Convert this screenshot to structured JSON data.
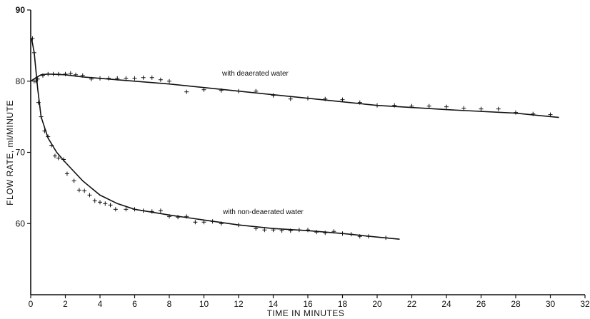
{
  "chart_data": {
    "type": "line",
    "xlabel": "TIME IN MINUTES",
    "ylabel": "FLOW RATE, ml/MINUTE",
    "xlim": [
      0,
      32
    ],
    "ylim": [
      50,
      90
    ],
    "x_ticks": [
      0,
      2,
      4,
      6,
      8,
      10,
      12,
      14,
      16,
      18,
      20,
      22,
      24,
      26,
      28,
      30,
      32
    ],
    "y_ticks": [
      60,
      70,
      80,
      90
    ],
    "grid": false,
    "series": [
      {
        "name": "with deaerated water",
        "line_x": [
          0,
          0.3,
          0.6,
          1.0,
          2.0,
          3.0,
          5.0,
          8.0,
          12.0,
          16.0,
          20.0,
          24.0,
          28.0,
          30.5
        ],
        "line_y": [
          80.0,
          80.5,
          80.9,
          81.0,
          80.9,
          80.6,
          80.2,
          79.6,
          78.6,
          77.6,
          76.6,
          76.0,
          75.5,
          74.9
        ],
        "points": [
          [
            0.2,
            80.0
          ],
          [
            0.4,
            80.3
          ],
          [
            0.7,
            80.8
          ],
          [
            1.0,
            81.0
          ],
          [
            1.3,
            81.0
          ],
          [
            1.6,
            81.0
          ],
          [
            2.0,
            81.0
          ],
          [
            2.3,
            81.1
          ],
          [
            2.6,
            80.9
          ],
          [
            3.0,
            80.8
          ],
          [
            3.5,
            80.3
          ],
          [
            4.0,
            80.4
          ],
          [
            4.5,
            80.4
          ],
          [
            5.0,
            80.4
          ],
          [
            5.5,
            80.4
          ],
          [
            6.0,
            80.4
          ],
          [
            6.5,
            80.5
          ],
          [
            7.0,
            80.5
          ],
          [
            7.5,
            80.2
          ],
          [
            8.0,
            80.0
          ],
          [
            9.0,
            78.5
          ],
          [
            10.0,
            78.8
          ],
          [
            11.0,
            78.7
          ],
          [
            12.0,
            78.6
          ],
          [
            13.0,
            78.6
          ],
          [
            14.0,
            78.0
          ],
          [
            15.0,
            77.5
          ],
          [
            16.0,
            77.6
          ],
          [
            17.0,
            77.5
          ],
          [
            18.0,
            77.4
          ],
          [
            19.0,
            77.0
          ],
          [
            20.0,
            76.6
          ],
          [
            21.0,
            76.6
          ],
          [
            22.0,
            76.5
          ],
          [
            23.0,
            76.5
          ],
          [
            24.0,
            76.4
          ],
          [
            25.0,
            76.2
          ],
          [
            26.0,
            76.1
          ],
          [
            27.0,
            76.1
          ],
          [
            28.0,
            75.6
          ],
          [
            29.0,
            75.4
          ],
          [
            30.0,
            75.3
          ]
        ]
      },
      {
        "name": "with non-deaerated water",
        "line_x": [
          0.05,
          0.2,
          0.4,
          0.6,
          1.0,
          1.5,
          2.0,
          3.0,
          4.0,
          5.0,
          6.0,
          8.0,
          10.0,
          12.0,
          14.0,
          16.0,
          18.0,
          20.0,
          21.3
        ],
        "line_y": [
          86.0,
          84.0,
          79.0,
          75.0,
          72.0,
          70.0,
          68.6,
          66.0,
          64.0,
          62.8,
          62.0,
          61.2,
          60.5,
          59.8,
          59.3,
          59.0,
          58.6,
          58.1,
          57.8
        ],
        "points": [
          [
            0.1,
            86.0
          ],
          [
            0.2,
            84.0
          ],
          [
            0.3,
            80.0
          ],
          [
            0.45,
            77.0
          ],
          [
            0.6,
            75.0
          ],
          [
            0.8,
            73.0
          ],
          [
            1.0,
            72.2
          ],
          [
            1.2,
            71.0
          ],
          [
            1.4,
            69.5
          ],
          [
            1.6,
            69.2
          ],
          [
            1.9,
            69.0
          ],
          [
            2.1,
            67.0
          ],
          [
            2.5,
            66.0
          ],
          [
            2.8,
            64.7
          ],
          [
            3.1,
            64.6
          ],
          [
            3.4,
            64.0
          ],
          [
            3.7,
            63.2
          ],
          [
            4.0,
            63.0
          ],
          [
            4.3,
            62.8
          ],
          [
            4.6,
            62.6
          ],
          [
            4.9,
            62.0
          ],
          [
            5.5,
            62.0
          ],
          [
            6.0,
            62.0
          ],
          [
            6.5,
            61.8
          ],
          [
            7.0,
            61.7
          ],
          [
            7.5,
            61.8
          ],
          [
            8.0,
            61.0
          ],
          [
            8.5,
            60.9
          ],
          [
            9.0,
            61.0
          ],
          [
            9.5,
            60.2
          ],
          [
            10.0,
            60.2
          ],
          [
            10.5,
            60.3
          ],
          [
            11.0,
            60.0
          ],
          [
            12.0,
            59.8
          ],
          [
            13.0,
            59.3
          ],
          [
            13.5,
            59.1
          ],
          [
            14.0,
            59.1
          ],
          [
            14.5,
            59.0
          ],
          [
            15.0,
            59.0
          ],
          [
            15.5,
            59.1
          ],
          [
            16.0,
            59.1
          ],
          [
            16.5,
            58.8
          ],
          [
            17.0,
            58.7
          ],
          [
            17.5,
            58.9
          ],
          [
            18.0,
            58.6
          ],
          [
            18.5,
            58.5
          ],
          [
            19.0,
            58.2
          ],
          [
            19.5,
            58.2
          ],
          [
            20.5,
            58.0
          ]
        ]
      }
    ]
  }
}
